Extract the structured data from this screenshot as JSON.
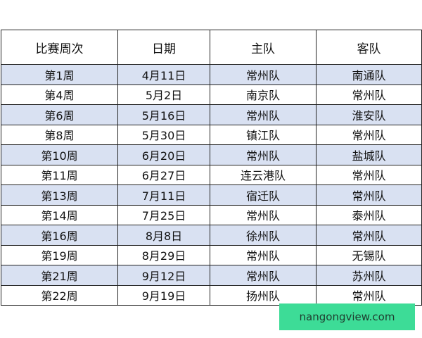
{
  "table": {
    "headers": [
      "比赛周次",
      "日期",
      "主队",
      "客队"
    ],
    "rows": [
      [
        "第1周",
        "4月11日",
        "常州队",
        "南通队"
      ],
      [
        "第4周",
        "5月2日",
        "南京队",
        "常州队"
      ],
      [
        "第6周",
        "5月16日",
        "常州队",
        "淮安队"
      ],
      [
        "第8周",
        "5月30日",
        "镇江队",
        "常州队"
      ],
      [
        "第10周",
        "6月20日",
        "常州队",
        "盐城队"
      ],
      [
        "第11周",
        "6月27日",
        "连云港队",
        "常州队"
      ],
      [
        "第13周",
        "7月11日",
        "宿迁队",
        "常州队"
      ],
      [
        "第14周",
        "7月25日",
        "常州队",
        "泰州队"
      ],
      [
        "第16周",
        "8月8日",
        "徐州队",
        "常州队"
      ],
      [
        "第19周",
        "8月29日",
        "常州队",
        "无锡队"
      ],
      [
        "第21周",
        "9月12日",
        "常州队",
        "苏州队"
      ],
      [
        "第22周",
        "9月19日",
        "扬州队",
        "常州队"
      ]
    ],
    "shade_color": "#d9e1f2"
  },
  "watermark": {
    "text": "nangongview.com",
    "color": "#3ddc97"
  }
}
